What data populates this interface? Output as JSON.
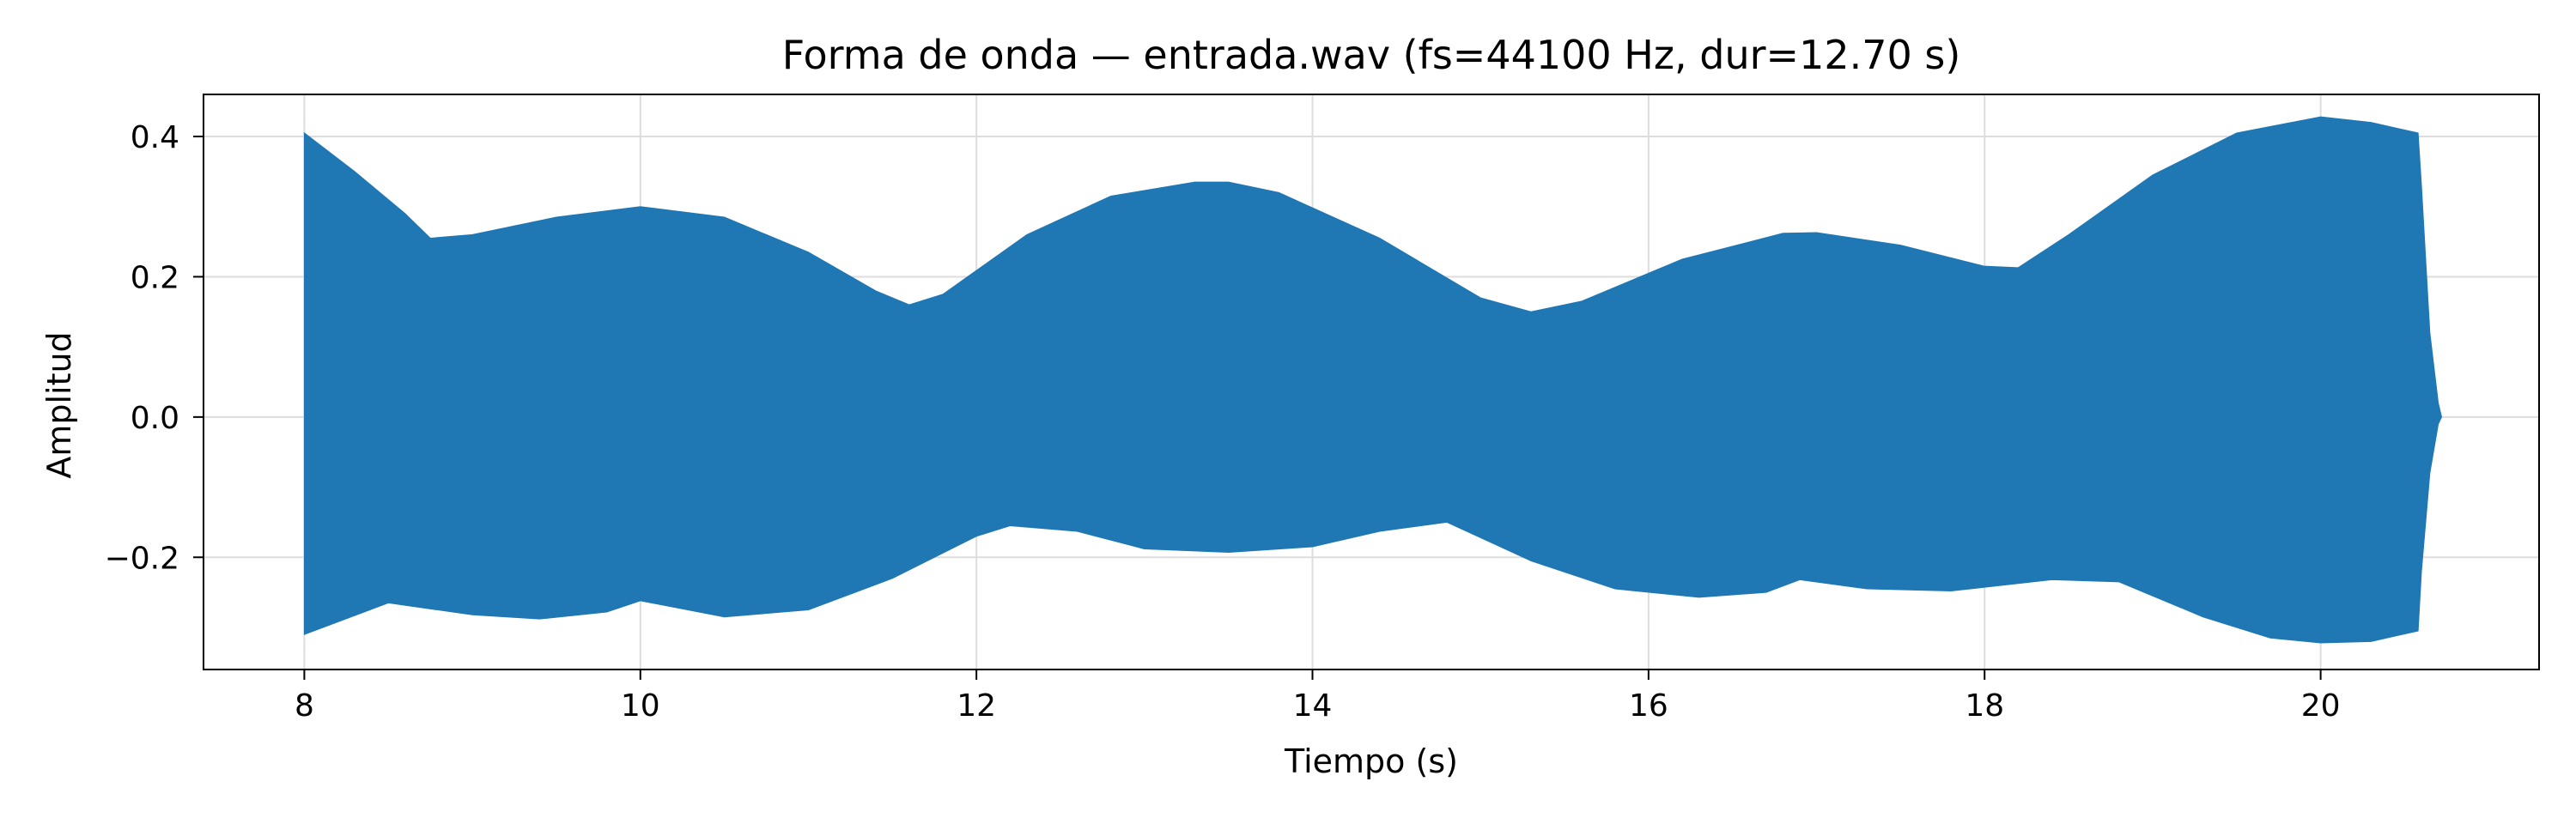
{
  "chart_data": {
    "type": "area",
    "title": "Forma de onda — entrada.wav (fs=44100 Hz, dur=12.70 s)",
    "xlabel": "Tiempo (s)",
    "ylabel": "Amplitud",
    "xlim": [
      7.4,
      21.3
    ],
    "ylim": [
      -0.36,
      0.46
    ],
    "grid": true,
    "legend": "none",
    "x_ticks": [
      8,
      10,
      12,
      14,
      16,
      18,
      20
    ],
    "y_ticks": [
      -0.2,
      0.0,
      0.2,
      0.4
    ],
    "x_tick_labels": [
      "8",
      "10",
      "12",
      "14",
      "16",
      "18",
      "20"
    ],
    "y_tick_labels": [
      "−0.2",
      "0.0",
      "0.2",
      "0.4"
    ],
    "series": [
      {
        "color": "#1f77b4",
        "upper_envelope": {
          "x": [
            8.0,
            8.3,
            8.6,
            8.75,
            9.0,
            9.5,
            10.0,
            10.5,
            11.0,
            11.4,
            11.6,
            11.8,
            12.3,
            12.8,
            13.3,
            13.5,
            13.8,
            14.4,
            15.0,
            15.3,
            15.6,
            16.2,
            16.8,
            17.0,
            17.5,
            18.0,
            18.2,
            18.5,
            19.0,
            19.5,
            20.0,
            20.3,
            20.58,
            20.6,
            20.65,
            20.7,
            20.72
          ],
          "y": [
            0.405,
            0.35,
            0.29,
            0.255,
            0.26,
            0.285,
            0.3,
            0.285,
            0.235,
            0.18,
            0.16,
            0.175,
            0.26,
            0.315,
            0.335,
            0.335,
            0.32,
            0.255,
            0.17,
            0.15,
            0.165,
            0.225,
            0.262,
            0.263,
            0.245,
            0.215,
            0.213,
            0.26,
            0.345,
            0.405,
            0.428,
            0.42,
            0.405,
            0.33,
            0.12,
            0.02,
            0.0
          ]
        },
        "lower_envelope": {
          "x": [
            8.0,
            8.5,
            9.0,
            9.4,
            9.8,
            10.0,
            10.5,
            11.0,
            11.5,
            12.0,
            12.2,
            12.6,
            13.0,
            13.5,
            14.0,
            14.4,
            14.8,
            15.3,
            15.8,
            16.3,
            16.7,
            16.9,
            17.3,
            17.8,
            18.4,
            18.8,
            19.3,
            19.7,
            20.0,
            20.3,
            20.58,
            20.6,
            20.65,
            20.7,
            20.72
          ],
          "y": [
            -0.31,
            -0.265,
            -0.282,
            -0.288,
            -0.278,
            -0.262,
            -0.285,
            -0.275,
            -0.23,
            -0.17,
            -0.155,
            -0.163,
            -0.188,
            -0.193,
            -0.185,
            -0.163,
            -0.15,
            -0.205,
            -0.245,
            -0.257,
            -0.25,
            -0.232,
            -0.245,
            -0.248,
            -0.232,
            -0.235,
            -0.285,
            -0.315,
            -0.322,
            -0.32,
            -0.305,
            -0.22,
            -0.08,
            -0.01,
            0.0
          ]
        }
      }
    ]
  }
}
